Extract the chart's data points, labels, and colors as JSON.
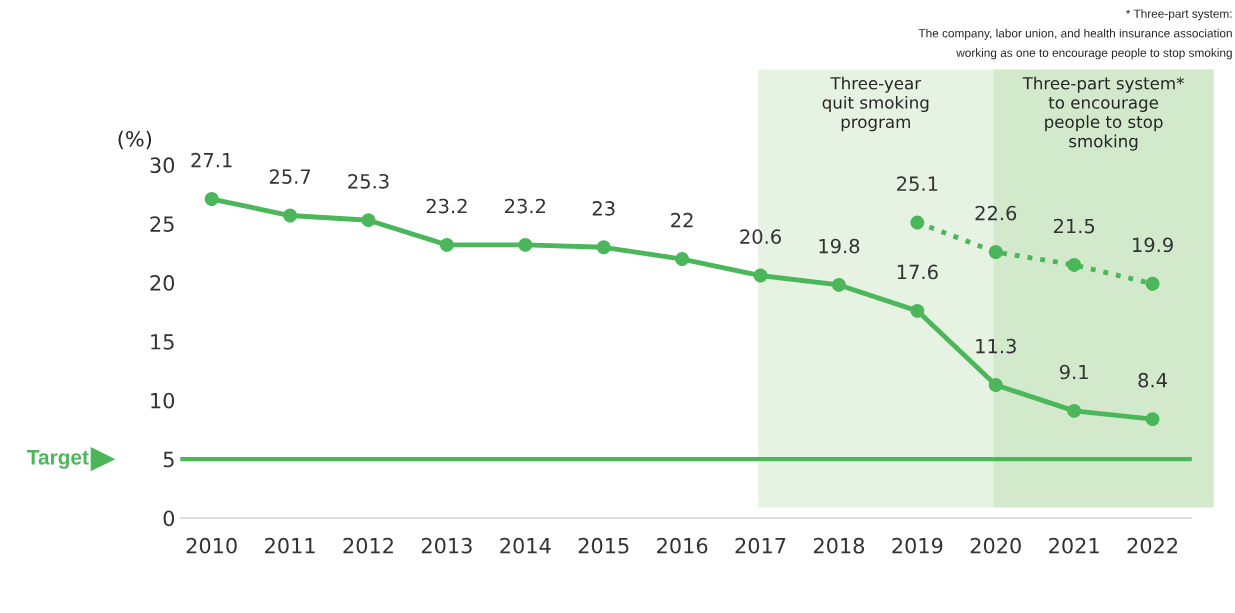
{
  "chart_data": {
    "type": "line",
    "categories": [
      "2010",
      "2011",
      "2012",
      "2013",
      "2014",
      "2015",
      "2016",
      "2017",
      "2018",
      "2019",
      "2020",
      "2021",
      "2022"
    ],
    "series": [
      {
        "color": "#4cb75a",
        "line_style": "dotted",
        "values": [
          null,
          null,
          null,
          null,
          null,
          null,
          null,
          null,
          null,
          25.1,
          22.6,
          21.5,
          19.9
        ]
      },
      {
        "color": "#4cb75a",
        "line_style": "solid",
        "values": [
          27.1,
          25.7,
          25.3,
          23.2,
          23.2,
          23,
          22,
          20.6,
          19.8,
          17.6,
          11.3,
          9.1,
          8.4
        ]
      }
    ],
    "ylabel": "(%)",
    "ylim": [
      0,
      30
    ],
    "yticks": [
      0,
      5,
      10,
      15,
      20,
      25,
      30
    ],
    "marker": "circle",
    "data_labels": true,
    "grid": false,
    "ref_lines": [
      {
        "axis": "y",
        "value": 5,
        "label": "Target",
        "color": "#4cb75a"
      }
    ],
    "bands": [
      {
        "axis": "x",
        "from": "2017",
        "to": "2020",
        "label": "Three-year\nquit smoking\nprogram",
        "color": "#e6f2e2"
      },
      {
        "axis": "x",
        "from": "2020",
        "to": "2022",
        "label": "Three-part system*\nto encourage\npeople to stop\nsmoking",
        "color": "#d2e9cc"
      }
    ],
    "annotations": [
      "* Three-part system:\nThe company, labor union, and health insurance association\nworking as one to encourage people to stop smoking"
    ]
  }
}
